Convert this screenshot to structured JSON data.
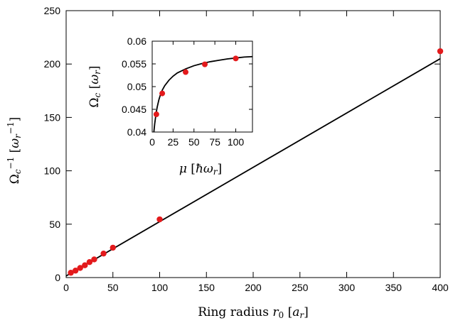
{
  "chart_data": [
    {
      "type": "scatter",
      "title": "",
      "xlabel": "Ring radius r0 [ar]",
      "ylabel": "Ωc−1 [ωr−1]",
      "xlim": [
        0,
        400
      ],
      "ylim": [
        0,
        250
      ],
      "xticks": [
        0,
        50,
        100,
        150,
        200,
        250,
        300,
        350,
        400
      ],
      "yticks": [
        0,
        50,
        100,
        150,
        200,
        250
      ],
      "grid": false,
      "legend": "none",
      "point_color": "#e31a1c",
      "series": [
        {
          "x": [
            5,
            10,
            15,
            20,
            25,
            30,
            40,
            50,
            100,
            400
          ],
          "y": [
            4.5,
            6.5,
            9.0,
            11.5,
            14.5,
            17.0,
            22.5,
            28.0,
            54.5,
            212.0
          ]
        }
      ],
      "fit_line": {
        "x": [
          0,
          400
        ],
        "y": [
          1.5,
          205.0
        ]
      }
    },
    {
      "type": "scatter",
      "inset": true,
      "title": "",
      "xlabel": "μ [ħωr]",
      "ylabel": "Ωc [ωr]",
      "xlim": [
        0,
        120
      ],
      "ylim": [
        0.04,
        0.06
      ],
      "xticks": [
        0,
        25,
        50,
        75,
        100
      ],
      "xtick_labels": [
        "0",
        "25",
        "50",
        "75",
        "100"
      ],
      "yticks": [
        0.04,
        0.045,
        0.05,
        0.055,
        0.06
      ],
      "ytick_labels": [
        "0.04",
        "0.045",
        "0.05",
        "0.055",
        "0.06"
      ],
      "grid": false,
      "legend": "none",
      "point_color": "#e31a1c",
      "series": [
        {
          "x": [
            5,
            12,
            40,
            63,
            100
          ],
          "y": [
            0.0439,
            0.0485,
            0.0532,
            0.0549,
            0.0562
          ]
        }
      ],
      "fit_curve": {
        "x": [
          2,
          3,
          4,
          5,
          6,
          8,
          10,
          12,
          15,
          20,
          25,
          30,
          40,
          50,
          60,
          70,
          80,
          90,
          100,
          110,
          120
        ],
        "y": [
          0.04,
          0.0418,
          0.0432,
          0.0445,
          0.0455,
          0.0471,
          0.0483,
          0.0492,
          0.0502,
          0.0514,
          0.0523,
          0.053,
          0.0539,
          0.0546,
          0.0551,
          0.0555,
          0.0558,
          0.0561,
          0.0563,
          0.0565,
          0.0566
        ]
      }
    }
  ]
}
